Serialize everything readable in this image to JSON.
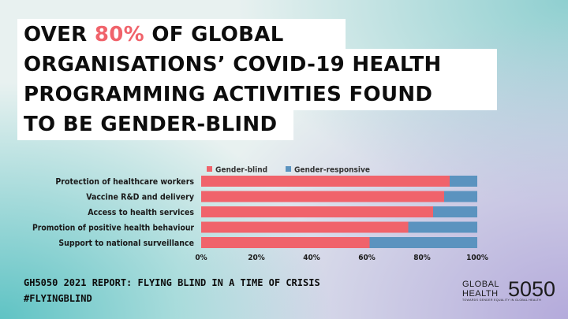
{
  "headline": {
    "line1_before": "OVER ",
    "line1_accent": "80%",
    "line1_after": " OF GLOBAL",
    "line2": "ORGANISATIONS’ COVID-19 HEALTH",
    "line3": "PROGRAMMING ACTIVITIES FOUND",
    "line4": "TO BE GENDER-BLIND"
  },
  "colors": {
    "accent": "#f0636b",
    "gender_blind": "#f0636b",
    "gender_responsive": "#5b93bf"
  },
  "chart_data": {
    "type": "bar",
    "orientation": "horizontal",
    "stacked": true,
    "percent_scale": true,
    "categories": [
      "Protection of healthcare workers",
      "Vaccine R&D and delivery",
      "Access to health services",
      "Promotion of positive health behaviour",
      "Support to national surveillance"
    ],
    "series": [
      {
        "name": "Gender-blind",
        "values": [
          90,
          88,
          84,
          75,
          61
        ]
      },
      {
        "name": "Gender-responsive",
        "values": [
          10,
          12,
          16,
          25,
          39
        ]
      }
    ],
    "xticks": [
      "0%",
      "20%",
      "40%",
      "60%",
      "80%",
      "100%"
    ],
    "xlim": [
      0,
      100
    ],
    "legend_position": "top",
    "grid": false
  },
  "footer": {
    "line1": "GH5050 2021 REPORT: FLYING BLIND IN A TIME OF CRISIS",
    "line2": "#FLYINGBLIND"
  },
  "logo": {
    "word1": "GLOBAL",
    "word2": "HEALTH",
    "number": "5050",
    "tagline": "TOWARDS GENDER EQUALITY IN GLOBAL HEALTH"
  }
}
